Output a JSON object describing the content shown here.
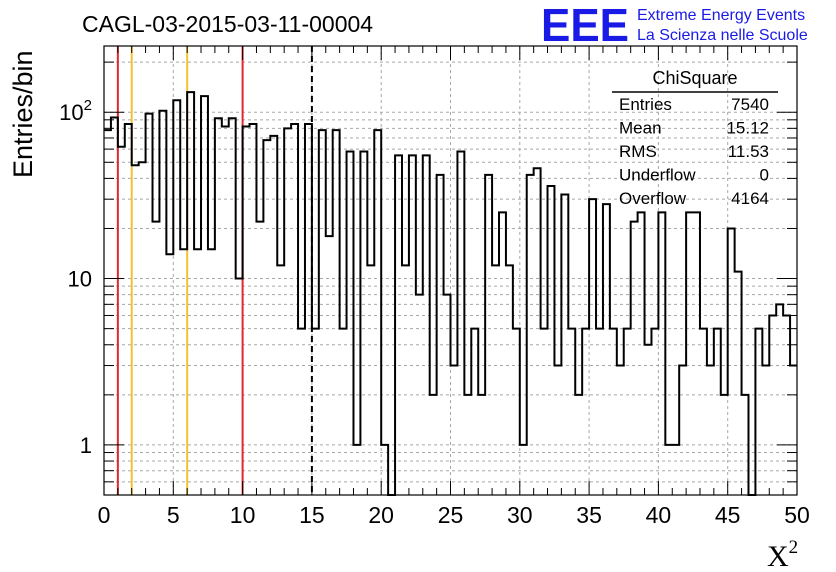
{
  "chart_data": {
    "type": "histogram",
    "title": "CAGL-03-2015-03-11-00004",
    "xlabel": "X",
    "xlabel_superscript": "2",
    "ylabel": "Entries/bin",
    "x_range": [
      0,
      50
    ],
    "y_range": [
      0.5,
      250
    ],
    "y_scale": "log",
    "grid": true,
    "bin_width": 0.5,
    "x_ticks": [
      "0",
      "5",
      "10",
      "15",
      "20",
      "25",
      "30",
      "35",
      "40",
      "45",
      "50"
    ],
    "y_ticks": [
      {
        "value": 1,
        "label": "1",
        "exp": ""
      },
      {
        "value": 10,
        "label": "10",
        "exp": ""
      },
      {
        "value": 100,
        "label": "10",
        "exp": "2"
      }
    ],
    "bin_values": [
      78,
      93,
      62,
      85,
      48,
      50,
      98,
      22,
      102,
      14,
      118,
      15,
      132,
      15,
      125,
      15,
      92,
      82,
      92,
      10,
      82,
      85,
      22,
      68,
      72,
      12,
      80,
      85,
      5,
      85,
      5,
      78,
      18,
      78,
      5,
      58,
      1,
      58,
      12,
      78,
      1,
      0.3,
      55,
      12,
      55,
      8,
      55,
      2,
      42,
      8,
      3,
      58,
      2,
      5,
      2,
      42,
      12,
      25,
      12,
      5,
      1,
      42,
      46,
      5,
      36,
      3,
      32,
      5,
      2,
      5,
      30,
      5,
      28,
      5,
      3,
      5,
      22,
      25,
      4,
      5,
      25,
      1,
      1,
      3,
      25,
      25,
      5,
      3,
      5,
      2,
      20,
      11,
      2,
      0.3,
      5,
      3,
      6,
      7,
      6,
      3
    ],
    "vertical_lines": [
      {
        "x": 1,
        "color": "#e3272d",
        "style": "solid"
      },
      {
        "x": 2,
        "color": "#f2c232",
        "style": "solid"
      },
      {
        "x": 6,
        "color": "#f2c232",
        "style": "solid"
      },
      {
        "x": 10,
        "color": "#e3272d",
        "style": "solid"
      },
      {
        "x": 15,
        "color": "#000000",
        "style": "dashed"
      }
    ],
    "stats_box": {
      "title": "ChiSquare",
      "rows": [
        {
          "label": "Entries",
          "value": "7540"
        },
        {
          "label": "Mean",
          "value": "15.12"
        },
        {
          "label": "RMS",
          "value": "11.53"
        },
        {
          "label": "Underflow",
          "value": "0"
        },
        {
          "label": "Overflow",
          "value": "4164"
        }
      ]
    },
    "logo": {
      "mark": "EEE",
      "line1": "Extreme Energy Events",
      "line2": "La Scienza nelle Scuole",
      "color": "#1a1ae6"
    }
  }
}
